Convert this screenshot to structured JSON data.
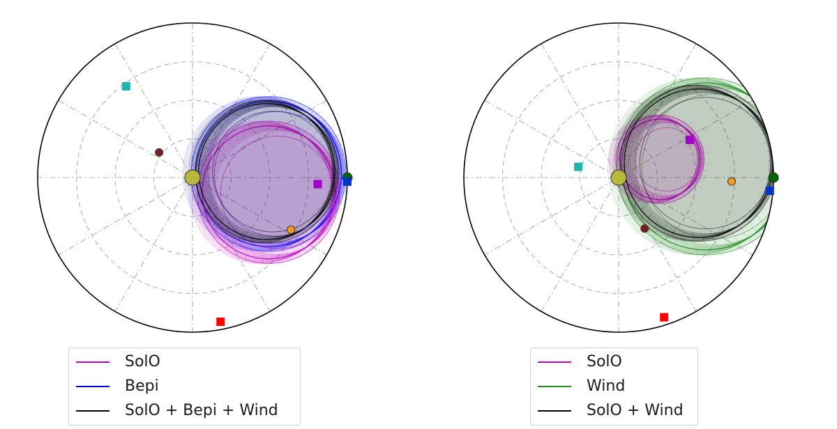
{
  "colors": {
    "solo": "#c000c0",
    "bepi": "#0000ee",
    "wind": "#228b22",
    "combined": "#000000",
    "sun": "#b8b83a",
    "earth": "#006400",
    "mercury": "#ff9a1a",
    "venus": "#7a1f1f",
    "marker_red": "#ff0000",
    "marker_cyan": "#1fb3b3",
    "marker_blue": "#0033cc",
    "marker_magenta": "#a000c8",
    "grid": "#b0b0b0"
  },
  "chart_data": [
    {
      "type": "scatter",
      "projection": "polar",
      "theta_unit": "deg",
      "r_max": 1.0,
      "grid": true,
      "radial_grid": [
        0.25,
        0.5,
        0.75
      ],
      "angular_grid_step": 30,
      "show_tick_labels": false,
      "legend_position": "bottom",
      "legend": [
        {
          "label": "SolO",
          "color": "#c000c0"
        },
        {
          "label": "Bepi",
          "color": "#0000ee"
        },
        {
          "label": "SolO + Bepi + Wind",
          "color": "#000000"
        }
      ],
      "shells": [
        {
          "series": "Bepi",
          "center_theta": 3,
          "center_r": 0.45,
          "radius": 0.47,
          "thickness": 0.12,
          "color": "#0000ee"
        },
        {
          "series": "SolO",
          "center_theta": -12,
          "center_r": 0.46,
          "radius": 0.43,
          "thickness": 0.12,
          "color": "#c000c0"
        },
        {
          "series": "SolO + Bepi + Wind",
          "center_theta": 5,
          "center_r": 0.45,
          "radius": 0.44,
          "thickness": 0.09,
          "color": "#000000"
        }
      ],
      "points": [
        {
          "id": "sun",
          "theta": 0,
          "r": 0,
          "shape": "circle",
          "size": "large",
          "color": "#b8b83a"
        },
        {
          "id": "earth",
          "theta": 0,
          "r": 1.0,
          "shape": "circle",
          "color": "#006400"
        },
        {
          "id": "blue-square",
          "theta": -1.5,
          "r": 1.0,
          "shape": "square",
          "color": "#0033cc"
        },
        {
          "id": "magenta-square",
          "theta": -3,
          "r": 0.81,
          "shape": "square",
          "color": "#a000c8"
        },
        {
          "id": "mercury",
          "theta": -28,
          "r": 0.72,
          "shape": "circle",
          "color": "#ff9a1a"
        },
        {
          "id": "venus",
          "theta": 143,
          "r": 0.27,
          "shape": "circle",
          "color": "#7a1f1f"
        },
        {
          "id": "cyan-square",
          "theta": 126,
          "r": 0.73,
          "shape": "square",
          "color": "#1fb3b3"
        },
        {
          "id": "red-square",
          "theta": -79,
          "r": 0.95,
          "shape": "square",
          "color": "#ff0000"
        }
      ]
    },
    {
      "type": "scatter",
      "projection": "polar",
      "theta_unit": "deg",
      "r_max": 1.0,
      "grid": true,
      "radial_grid": [
        0.25,
        0.5,
        0.75
      ],
      "angular_grid_step": 30,
      "show_tick_labels": false,
      "legend_position": "bottom",
      "legend": [
        {
          "label": "SolO",
          "color": "#c000c0"
        },
        {
          "label": "Wind",
          "color": "#228b22"
        },
        {
          "label": "SolO + Wind",
          "color": "#000000"
        }
      ],
      "shells": [
        {
          "series": "Wind",
          "center_theta": 8,
          "center_r": 0.52,
          "radius": 0.54,
          "thickness": 0.13,
          "color": "#228b22"
        },
        {
          "series": "SolO",
          "center_theta": 27,
          "center_r": 0.26,
          "radius": 0.26,
          "thickness": 0.1,
          "color": "#c000c0"
        },
        {
          "series": "SolO + Wind",
          "center_theta": 11,
          "center_r": 0.49,
          "radius": 0.48,
          "thickness": 0.1,
          "color": "#000000"
        }
      ],
      "points": [
        {
          "id": "sun",
          "theta": 0,
          "r": 0,
          "shape": "circle",
          "size": "large",
          "color": "#b8b83a"
        },
        {
          "id": "earth",
          "theta": 0,
          "r": 1.0,
          "shape": "circle",
          "color": "#006400"
        },
        {
          "id": "blue-square",
          "theta": -5,
          "r": 0.98,
          "shape": "square",
          "color": "#0033cc"
        },
        {
          "id": "magenta-square",
          "theta": 28,
          "r": 0.52,
          "shape": "square",
          "color": "#a000c8"
        },
        {
          "id": "mercury",
          "theta": -2,
          "r": 0.73,
          "shape": "circle",
          "color": "#ff9a1a"
        },
        {
          "id": "venus",
          "theta": -63,
          "r": 0.37,
          "shape": "circle",
          "color": "#7a1f1f"
        },
        {
          "id": "cyan-square",
          "theta": 165,
          "r": 0.27,
          "shape": "square",
          "color": "#1fb3b3"
        },
        {
          "id": "red-square",
          "theta": -72,
          "r": 0.95,
          "shape": "square",
          "color": "#ff0000"
        }
      ]
    }
  ]
}
